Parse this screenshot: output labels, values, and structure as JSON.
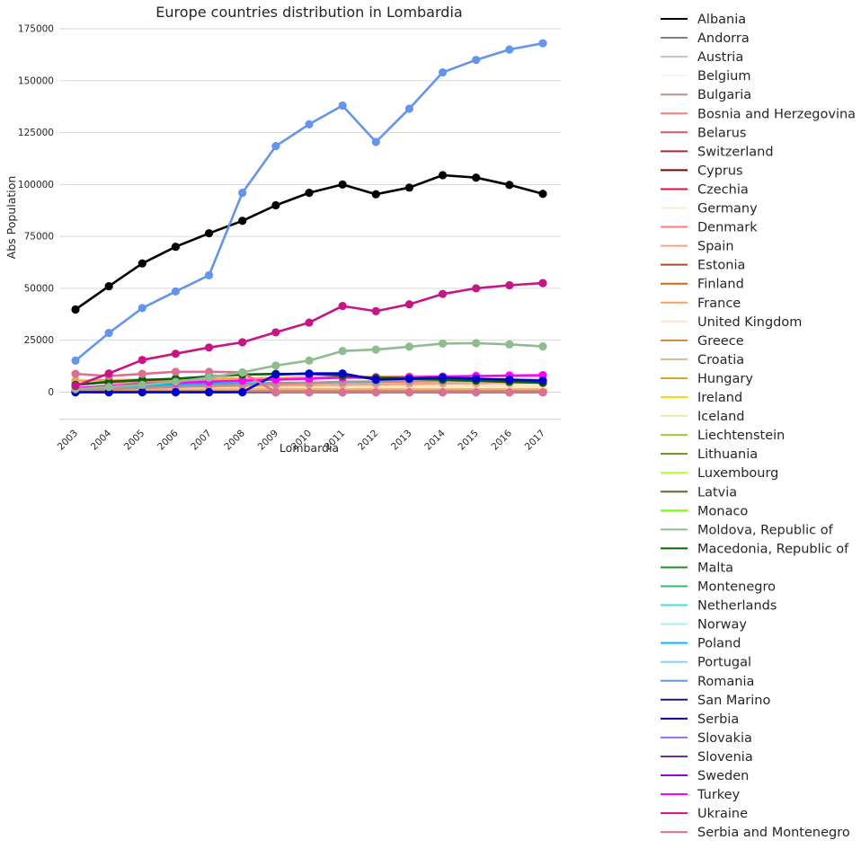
{
  "chart_data": {
    "type": "line",
    "title": "Europe countries distribution in Lombardia",
    "xlabel": "Lombardia",
    "ylabel": "Abs Population",
    "x": [
      "2003",
      "2004",
      "2005",
      "2006",
      "2007",
      "2008",
      "2009",
      "2010",
      "2011",
      "2012",
      "2013",
      "2014",
      "2015",
      "2016",
      "2017"
    ],
    "ylim": [
      -10000,
      177000
    ],
    "yticks": [
      0,
      25000,
      50000,
      75000,
      100000,
      125000,
      150000,
      175000
    ],
    "ytick_labels": [
      "0",
      "25000",
      "50000",
      "75000",
      "100000",
      "125000",
      "150000",
      "175000"
    ],
    "grid": "horizontal",
    "legend_position": "outside-right",
    "series": [
      {
        "name": "Albania",
        "color": "#000000",
        "values": [
          39800,
          51000,
          62000,
          70000,
          76500,
          82500,
          90000,
          96000,
          100000,
          95300,
          98500,
          104500,
          103300,
          99800,
          95500
        ]
      },
      {
        "name": "Andorra",
        "color": "#808080",
        "values": [
          0,
          0,
          0,
          0,
          0,
          0,
          0,
          0,
          0,
          0,
          0,
          0,
          0,
          0,
          0
        ]
      },
      {
        "name": "Austria",
        "color": "#c0c0c0",
        "values": [
          300,
          300,
          300,
          300,
          300,
          300,
          300,
          300,
          300,
          300,
          300,
          300,
          300,
          300,
          300
        ]
      },
      {
        "name": "Belgium",
        "color": "#f0f8ff",
        "values": [
          200,
          200,
          200,
          200,
          200,
          200,
          200,
          200,
          200,
          200,
          200,
          200,
          200,
          200,
          200
        ]
      },
      {
        "name": "Bulgaria",
        "color": "#bc8f8f",
        "values": [
          1000,
          1500,
          2000,
          2500,
          3000,
          3500,
          4000,
          4500,
          5000,
          5200,
          5400,
          5600,
          5700,
          5800,
          5900
        ]
      },
      {
        "name": "Bosnia and Herzegovina",
        "color": "#f08080",
        "values": [
          4000,
          4500,
          5000,
          5500,
          6000,
          6500,
          6800,
          7000,
          7200,
          6800,
          6600,
          6400,
          6200,
          6000,
          5800
        ]
      },
      {
        "name": "Belarus",
        "color": "#cd5c5c",
        "values": [
          300,
          300,
          400,
          400,
          500,
          500,
          500,
          500,
          500,
          500,
          500,
          500,
          500,
          500,
          500
        ]
      },
      {
        "name": "Switzerland",
        "color": "#a52a2a",
        "values": [
          1000,
          1000,
          1000,
          1000,
          1000,
          1000,
          1000,
          1000,
          1000,
          1000,
          1000,
          1000,
          1000,
          1000,
          1000
        ]
      },
      {
        "name": "Cyprus",
        "color": "#800000",
        "values": [
          0,
          0,
          0,
          0,
          0,
          0,
          0,
          0,
          0,
          0,
          0,
          0,
          0,
          0,
          0
        ]
      },
      {
        "name": "Czechia",
        "color": "#dc143c",
        "values": [
          300,
          300,
          300,
          300,
          300,
          300,
          300,
          300,
          300,
          300,
          300,
          300,
          300,
          300,
          300
        ]
      },
      {
        "name": "Germany",
        "color": "#faebd7",
        "values": [
          3000,
          3000,
          3000,
          3000,
          3000,
          3000,
          3000,
          3000,
          3000,
          3000,
          3000,
          3000,
          3000,
          3000,
          3000
        ]
      },
      {
        "name": "Denmark",
        "color": "#fa8072",
        "values": [
          100,
          100,
          100,
          100,
          100,
          100,
          100,
          100,
          100,
          100,
          100,
          100,
          100,
          100,
          100
        ]
      },
      {
        "name": "Spain",
        "color": "#ffa07a",
        "values": [
          2000,
          2200,
          2400,
          2600,
          2800,
          3000,
          3200,
          3400,
          3600,
          3800,
          4000,
          4200,
          4300,
          4400,
          4500
        ]
      },
      {
        "name": "Estonia",
        "color": "#a0522d",
        "values": [
          50,
          50,
          50,
          50,
          50,
          50,
          50,
          50,
          50,
          50,
          50,
          50,
          50,
          50,
          50
        ]
      },
      {
        "name": "Finland",
        "color": "#d2691e",
        "values": [
          100,
          100,
          100,
          100,
          100,
          100,
          100,
          100,
          100,
          100,
          100,
          100,
          100,
          100,
          100
        ]
      },
      {
        "name": "France",
        "color": "#f4a460",
        "values": [
          5500,
          5800,
          6000,
          6200,
          6400,
          6600,
          6800,
          7000,
          7200,
          7400,
          7500,
          7600,
          7700,
          7800,
          7900
        ]
      },
      {
        "name": "United Kingdom",
        "color": "#ffe4c4",
        "values": [
          2000,
          2100,
          2200,
          2300,
          2400,
          2500,
          2600,
          2700,
          2800,
          2900,
          3000,
          3000,
          3000,
          3000,
          3000
        ]
      },
      {
        "name": "Greece",
        "color": "#cd853f",
        "values": [
          1000,
          1000,
          1000,
          1000,
          1000,
          1000,
          1000,
          1000,
          1000,
          1000,
          1000,
          1000,
          1000,
          1000,
          1000
        ]
      },
      {
        "name": "Croatia",
        "color": "#deb887",
        "values": [
          1500,
          1500,
          1500,
          1500,
          1500,
          1500,
          1500,
          1500,
          1500,
          1500,
          1500,
          1500,
          1500,
          1500,
          1500
        ]
      },
      {
        "name": "Hungary",
        "color": "#daa520",
        "values": [
          500,
          500,
          500,
          600,
          600,
          700,
          700,
          800,
          800,
          800,
          800,
          800,
          800,
          800,
          800
        ]
      },
      {
        "name": "Ireland",
        "color": "#ffd700",
        "values": [
          200,
          200,
          200,
          200,
          200,
          200,
          200,
          200,
          200,
          200,
          200,
          200,
          200,
          200,
          200
        ]
      },
      {
        "name": "Iceland",
        "color": "#eee8aa",
        "values": [
          0,
          0,
          0,
          0,
          0,
          0,
          0,
          0,
          0,
          0,
          0,
          0,
          0,
          0,
          0
        ]
      },
      {
        "name": "Liechtenstein",
        "color": "#9acd32",
        "values": [
          0,
          0,
          0,
          0,
          0,
          0,
          0,
          0,
          0,
          0,
          0,
          0,
          0,
          0,
          0
        ]
      },
      {
        "name": "Lithuania",
        "color": "#6b8e23",
        "values": [
          200,
          200,
          300,
          300,
          400,
          400,
          500,
          500,
          500,
          500,
          500,
          500,
          500,
          500,
          500
        ]
      },
      {
        "name": "Luxembourg",
        "color": "#adff2f",
        "values": [
          0,
          0,
          0,
          0,
          0,
          0,
          0,
          0,
          0,
          0,
          0,
          0,
          0,
          0,
          0
        ]
      },
      {
        "name": "Latvia",
        "color": "#556b2f",
        "values": [
          100,
          100,
          100,
          200,
          200,
          200,
          200,
          200,
          200,
          200,
          200,
          200,
          200,
          200,
          200
        ]
      },
      {
        "name": "Monaco",
        "color": "#7cfc00",
        "values": [
          0,
          0,
          0,
          0,
          0,
          0,
          0,
          0,
          0,
          0,
          0,
          0,
          0,
          0,
          0
        ]
      },
      {
        "name": "Moldova, Republic of",
        "color": "#8fbc8f",
        "values": [
          1500,
          2500,
          3500,
          5000,
          7000,
          9500,
          12800,
          15200,
          19800,
          20500,
          21900,
          23400,
          23600,
          23000,
          22000
        ]
      },
      {
        "name": "Macedonia, Republic of",
        "color": "#006400",
        "values": [
          3500,
          5000,
          5800,
          6500,
          7500,
          8500,
          8800,
          8800,
          8000,
          6800,
          6500,
          6000,
          5500,
          5000,
          4500
        ]
      },
      {
        "name": "Malta",
        "color": "#228b22",
        "values": [
          0,
          0,
          0,
          0,
          0,
          0,
          0,
          0,
          0,
          0,
          0,
          0,
          0,
          0,
          0
        ]
      },
      {
        "name": "Montenegro",
        "color": "#3cb371",
        "values": [
          200,
          200,
          200,
          200,
          200,
          200,
          200,
          200,
          200,
          200,
          200,
          200,
          200,
          200,
          200
        ]
      },
      {
        "name": "Netherlands",
        "color": "#40e0d0",
        "values": [
          500,
          500,
          500,
          500,
          500,
          500,
          500,
          500,
          500,
          500,
          500,
          500,
          500,
          500,
          500
        ]
      },
      {
        "name": "Norway",
        "color": "#afeeee",
        "values": [
          0,
          0,
          0,
          0,
          0,
          0,
          0,
          0,
          0,
          0,
          0,
          0,
          0,
          0,
          0
        ]
      },
      {
        "name": "Poland",
        "color": "#00bfff",
        "values": [
          2000,
          2500,
          3000,
          3500,
          4000,
          4200,
          4400,
          4600,
          4800,
          5000,
          5200,
          5400,
          5500,
          5600,
          5700
        ]
      },
      {
        "name": "Portugal",
        "color": "#87cefa",
        "values": [
          500,
          500,
          500,
          500,
          500,
          500,
          500,
          500,
          500,
          500,
          500,
          500,
          500,
          500,
          500
        ]
      },
      {
        "name": "Romania",
        "color": "#6495ed",
        "values": [
          15200,
          28500,
          40500,
          48500,
          56300,
          96000,
          118500,
          129000,
          138000,
          120500,
          136500,
          154000,
          160000,
          165000,
          168000
        ]
      },
      {
        "name": "San Marino",
        "color": "#191970",
        "values": [
          0,
          0,
          0,
          0,
          0,
          0,
          0,
          0,
          0,
          0,
          0,
          0,
          0,
          0,
          0
        ]
      },
      {
        "name": "Serbia",
        "color": "#0000cd",
        "values": [
          0,
          0,
          0,
          0,
          0,
          0,
          8500,
          9000,
          9000,
          6000,
          6500,
          7000,
          6500,
          6000,
          5500
        ]
      },
      {
        "name": "Slovakia",
        "color": "#9370db",
        "values": [
          300,
          300,
          300,
          400,
          400,
          500,
          500,
          500,
          500,
          500,
          500,
          500,
          500,
          500,
          500
        ]
      },
      {
        "name": "Slovenia",
        "color": "#663399",
        "values": [
          500,
          500,
          500,
          500,
          500,
          500,
          500,
          500,
          500,
          500,
          500,
          500,
          500,
          500,
          500
        ]
      },
      {
        "name": "Sweden",
        "color": "#9400d3",
        "values": [
          500,
          500,
          500,
          500,
          500,
          500,
          500,
          500,
          500,
          500,
          500,
          500,
          500,
          500,
          500
        ]
      },
      {
        "name": "Turkey",
        "color": "#ff00ff",
        "values": [
          2000,
          3000,
          4000,
          4500,
          5000,
          5500,
          6000,
          6500,
          7000,
          7000,
          7200,
          7500,
          7800,
          8000,
          8200
        ]
      },
      {
        "name": "Ukraine",
        "color": "#c71585",
        "values": [
          3000,
          9000,
          15500,
          18500,
          21500,
          24000,
          28800,
          33500,
          41500,
          39000,
          42300,
          47300,
          50000,
          51500,
          52500
        ]
      },
      {
        "name": "Serbia and Montenegro",
        "color": "#db7093",
        "values": [
          8800,
          7800,
          8800,
          9800,
          9800,
          9500,
          0,
          0,
          0,
          0,
          0,
          0,
          0,
          0,
          0
        ]
      }
    ]
  }
}
